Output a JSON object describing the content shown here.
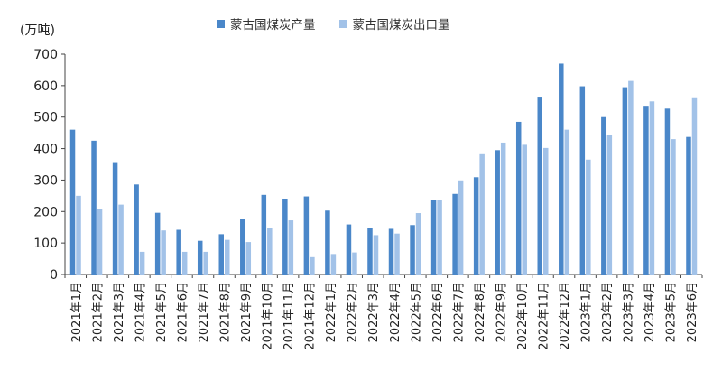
{
  "chart_data": {
    "type": "bar",
    "ylabel": "(万吨)",
    "ylim": [
      0,
      700
    ],
    "yticks": [
      0,
      100,
      200,
      300,
      400,
      500,
      600,
      700
    ],
    "legend_position": "top-center",
    "grid": false,
    "categories": [
      "2021年1月",
      "2021年2月",
      "2021年3月",
      "2021年4月",
      "2021年5月",
      "2021年6月",
      "2021年7月",
      "2021年8月",
      "2021年9月",
      "2021年10月",
      "2021年11月",
      "2021年12月",
      "2022年1月",
      "2022年2月",
      "2022年3月",
      "2022年4月",
      "2022年5月",
      "2022年6月",
      "2022年7月",
      "2022年8月",
      "2022年9月",
      "2022年10月",
      "2022年11月",
      "2022年12月",
      "2023年1月",
      "2023年2月",
      "2023年3月",
      "2023年4月",
      "2023年5月",
      "2023年6月"
    ],
    "series": [
      {
        "name": "蒙古国煤炭产量",
        "color": "#4A87C9",
        "values": [
          460,
          425,
          357,
          286,
          196,
          142,
          107,
          128,
          177,
          253,
          241,
          248,
          203,
          159,
          148,
          145,
          157,
          238,
          256,
          309,
          395,
          485,
          565,
          670,
          598,
          500,
          595,
          536,
          527,
          437
        ]
      },
      {
        "name": "蒙古国煤炭出口量",
        "color": "#A2C2E8",
        "values": [
          250,
          207,
          222,
          72,
          140,
          72,
          72,
          110,
          103,
          148,
          172,
          55,
          65,
          70,
          125,
          130,
          195,
          238,
          299,
          385,
          419,
          412,
          402,
          460,
          365,
          443,
          615,
          550,
          430,
          563
        ]
      }
    ]
  }
}
